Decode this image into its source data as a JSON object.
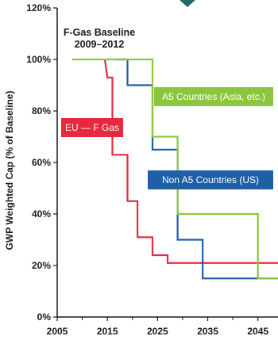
{
  "chart_data": {
    "type": "line",
    "xlim": [
      2005,
      2049
    ],
    "ylim": [
      0,
      120
    ],
    "x_ticks": [
      "2005",
      "2015",
      "2025",
      "2035",
      "2045"
    ],
    "x_minor_ticks": [
      2010,
      2020,
      2030,
      2040
    ],
    "y_ticks": [
      "0%",
      "20%",
      "40%",
      "60%",
      "80%",
      "100%",
      "120%"
    ],
    "y_tick_values": [
      0,
      20,
      40,
      60,
      80,
      100,
      120
    ],
    "ylabel": "GWP Weighted Cap (% of Baseline)",
    "grid": false,
    "annotation": {
      "line1": "F-Gas Baseline",
      "line2": "2009–2012"
    },
    "series": [
      {
        "name": "EU — F Gas",
        "color": "#e8283c",
        "step": true,
        "points": [
          [
            2014.5,
            100
          ],
          [
            2015,
            93
          ],
          [
            2016,
            93
          ],
          [
            2016,
            63
          ],
          [
            2019,
            63
          ],
          [
            2019,
            45
          ],
          [
            2021,
            45
          ],
          [
            2021,
            31
          ],
          [
            2024,
            31
          ],
          [
            2024,
            24
          ],
          [
            2027,
            24
          ],
          [
            2027,
            21
          ],
          [
            2030,
            21
          ],
          [
            2030,
            21
          ],
          [
            2049,
            21
          ]
        ]
      },
      {
        "name": "Non A5 Countries (US)",
        "color": "#1f5fa8",
        "step": true,
        "points": [
          [
            2017,
            100
          ],
          [
            2019,
            100
          ],
          [
            2019,
            90
          ],
          [
            2024,
            90
          ],
          [
            2024,
            65
          ],
          [
            2029,
            65
          ],
          [
            2029,
            30
          ],
          [
            2034,
            30
          ],
          [
            2034,
            15
          ],
          [
            2049,
            15
          ]
        ]
      },
      {
        "name": "A5 Countries (Asia, etc.)",
        "color": "#8cc63f",
        "step": true,
        "points": [
          [
            2008,
            100
          ],
          [
            2024,
            100
          ],
          [
            2024,
            70
          ],
          [
            2029,
            70
          ],
          [
            2029,
            40
          ],
          [
            2045,
            40
          ],
          [
            2045,
            15
          ],
          [
            2049,
            15
          ]
        ]
      }
    ],
    "legend_boxes": [
      {
        "series": "A5 Countries (Asia, etc.)",
        "label": "A5 Countries (Asia, etc.)",
        "color": "#8cc63f"
      },
      {
        "series": "EU — F Gas",
        "label": "EU — F Gas",
        "color": "#e8283c"
      },
      {
        "series": "Non A5 Countries (US)",
        "label": "Non A5 Countries (US)",
        "color": "#1f5fa8"
      }
    ],
    "top_marker_color": "#1f6b6b"
  }
}
